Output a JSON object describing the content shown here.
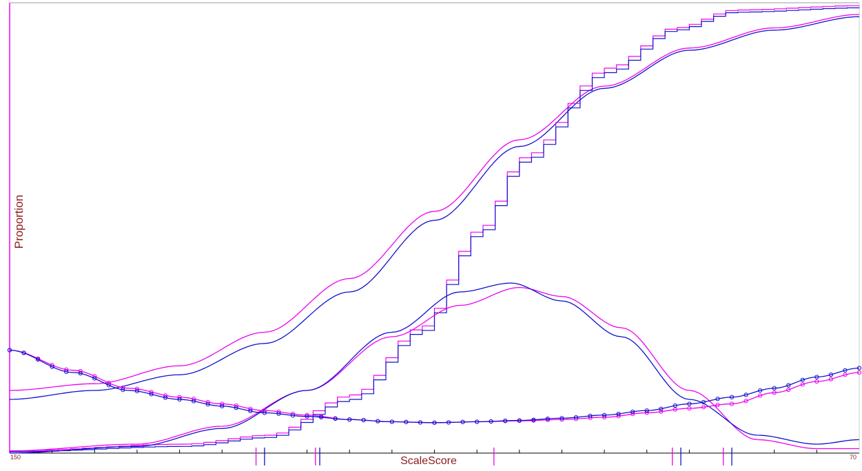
{
  "chart_data": {
    "type": "line",
    "title": "",
    "xlabel": "ScaleScore",
    "ylabel": "Proportion",
    "x_tick_labels": {
      "min": "150",
      "max": "70"
    },
    "colors": {
      "series_a": "#ee00ee",
      "series_b": "#1010cc",
      "axis_label": "#8b1a1a",
      "axis": "#000000"
    },
    "xlim": [
      0,
      1
    ],
    "ylim": [
      0,
      1
    ],
    "grid": false,
    "series": [
      {
        "kind": "smooth",
        "color": "#ee00ee",
        "points": [
          [
            0,
            0.14
          ],
          [
            0.1,
            0.155
          ],
          [
            0.2,
            0.195
          ],
          [
            0.3,
            0.27
          ],
          [
            0.4,
            0.39
          ],
          [
            0.5,
            0.54
          ],
          [
            0.6,
            0.7
          ],
          [
            0.7,
            0.82
          ],
          [
            0.8,
            0.905
          ],
          [
            0.9,
            0.95
          ],
          [
            1,
            0.98
          ]
        ]
      },
      {
        "kind": "smooth",
        "color": "#1010cc",
        "points": [
          [
            0,
            0.12
          ],
          [
            0.1,
            0.14
          ],
          [
            0.2,
            0.175
          ],
          [
            0.3,
            0.245
          ],
          [
            0.4,
            0.36
          ],
          [
            0.5,
            0.52
          ],
          [
            0.6,
            0.685
          ],
          [
            0.7,
            0.815
          ],
          [
            0.8,
            0.9
          ],
          [
            0.9,
            0.945
          ],
          [
            1,
            0.975
          ]
        ]
      },
      {
        "kind": "step",
        "color": "#ee00ee",
        "points": [
          [
            0,
            0.005
          ],
          [
            0.2,
            0.02
          ],
          [
            0.3,
            0.04
          ],
          [
            0.4,
            0.13
          ],
          [
            0.48,
            0.28
          ],
          [
            0.55,
            0.5
          ],
          [
            0.6,
            0.66
          ],
          [
            0.7,
            0.86
          ],
          [
            0.78,
            0.95
          ],
          [
            0.85,
            0.99
          ],
          [
            1,
            1.0
          ]
        ]
      },
      {
        "kind": "step",
        "color": "#1010cc",
        "points": [
          [
            0,
            0.003
          ],
          [
            0.2,
            0.015
          ],
          [
            0.3,
            0.035
          ],
          [
            0.4,
            0.12
          ],
          [
            0.48,
            0.27
          ],
          [
            0.55,
            0.49
          ],
          [
            0.6,
            0.65
          ],
          [
            0.7,
            0.85
          ],
          [
            0.78,
            0.945
          ],
          [
            0.85,
            0.985
          ],
          [
            1,
            0.995
          ]
        ]
      },
      {
        "kind": "smooth",
        "color": "#ee00ee",
        "points": [
          [
            0,
            0.005
          ],
          [
            0.15,
            0.02
          ],
          [
            0.25,
            0.06
          ],
          [
            0.35,
            0.14
          ],
          [
            0.45,
            0.26
          ],
          [
            0.53,
            0.33
          ],
          [
            0.6,
            0.37
          ],
          [
            0.65,
            0.35
          ],
          [
            0.72,
            0.28
          ],
          [
            0.8,
            0.14
          ],
          [
            0.88,
            0.03
          ],
          [
            0.95,
            0.01
          ],
          [
            1,
            0.01
          ]
        ]
      },
      {
        "kind": "smooth",
        "color": "#1010cc",
        "points": [
          [
            0,
            0.0
          ],
          [
            0.15,
            0.015
          ],
          [
            0.25,
            0.055
          ],
          [
            0.35,
            0.14
          ],
          [
            0.45,
            0.27
          ],
          [
            0.53,
            0.36
          ],
          [
            0.59,
            0.38
          ],
          [
            0.65,
            0.34
          ],
          [
            0.72,
            0.26
          ],
          [
            0.8,
            0.12
          ],
          [
            0.88,
            0.04
          ],
          [
            0.95,
            0.02
          ],
          [
            1,
            0.03
          ]
        ]
      },
      {
        "kind": "markers",
        "color": "#ee00ee",
        "points": [
          [
            0,
            0.23
          ],
          [
            0.075,
            0.185
          ],
          [
            0.14,
            0.145
          ],
          [
            0.2,
            0.125
          ],
          [
            0.25,
            0.11
          ],
          [
            0.3,
            0.095
          ],
          [
            0.35,
            0.085
          ],
          [
            0.4,
            0.075
          ],
          [
            0.45,
            0.07
          ],
          [
            0.5,
            0.068
          ],
          [
            0.55,
            0.07
          ],
          [
            0.6,
            0.072
          ],
          [
            0.65,
            0.075
          ],
          [
            0.7,
            0.08
          ],
          [
            0.75,
            0.09
          ],
          [
            0.8,
            0.1
          ],
          [
            0.85,
            0.11
          ],
          [
            0.9,
            0.135
          ],
          [
            0.95,
            0.16
          ],
          [
            1,
            0.18
          ]
        ]
      },
      {
        "kind": "markers",
        "color": "#1010cc",
        "points": [
          [
            0,
            0.23
          ],
          [
            0.075,
            0.18
          ],
          [
            0.14,
            0.14
          ],
          [
            0.2,
            0.12
          ],
          [
            0.25,
            0.105
          ],
          [
            0.3,
            0.09
          ],
          [
            0.35,
            0.082
          ],
          [
            0.4,
            0.075
          ],
          [
            0.45,
            0.07
          ],
          [
            0.5,
            0.068
          ],
          [
            0.55,
            0.07
          ],
          [
            0.6,
            0.073
          ],
          [
            0.65,
            0.078
          ],
          [
            0.7,
            0.085
          ],
          [
            0.75,
            0.095
          ],
          [
            0.8,
            0.11
          ],
          [
            0.85,
            0.125
          ],
          [
            0.9,
            0.145
          ],
          [
            0.95,
            0.17
          ],
          [
            1,
            0.19
          ]
        ]
      }
    ],
    "rug_marks": [
      {
        "x": 0.29,
        "color": "#ee00ee"
      },
      {
        "x": 0.3,
        "color": "#1010cc"
      },
      {
        "x": 0.36,
        "color": "#ee00ee"
      },
      {
        "x": 0.365,
        "color": "#1010cc"
      },
      {
        "x": 0.57,
        "color": "#ee00ee"
      },
      {
        "x": 0.78,
        "color": "#ee00ee"
      },
      {
        "x": 0.79,
        "color": "#1010cc"
      },
      {
        "x": 0.84,
        "color": "#ee00ee"
      },
      {
        "x": 0.85,
        "color": "#1010cc"
      }
    ]
  }
}
